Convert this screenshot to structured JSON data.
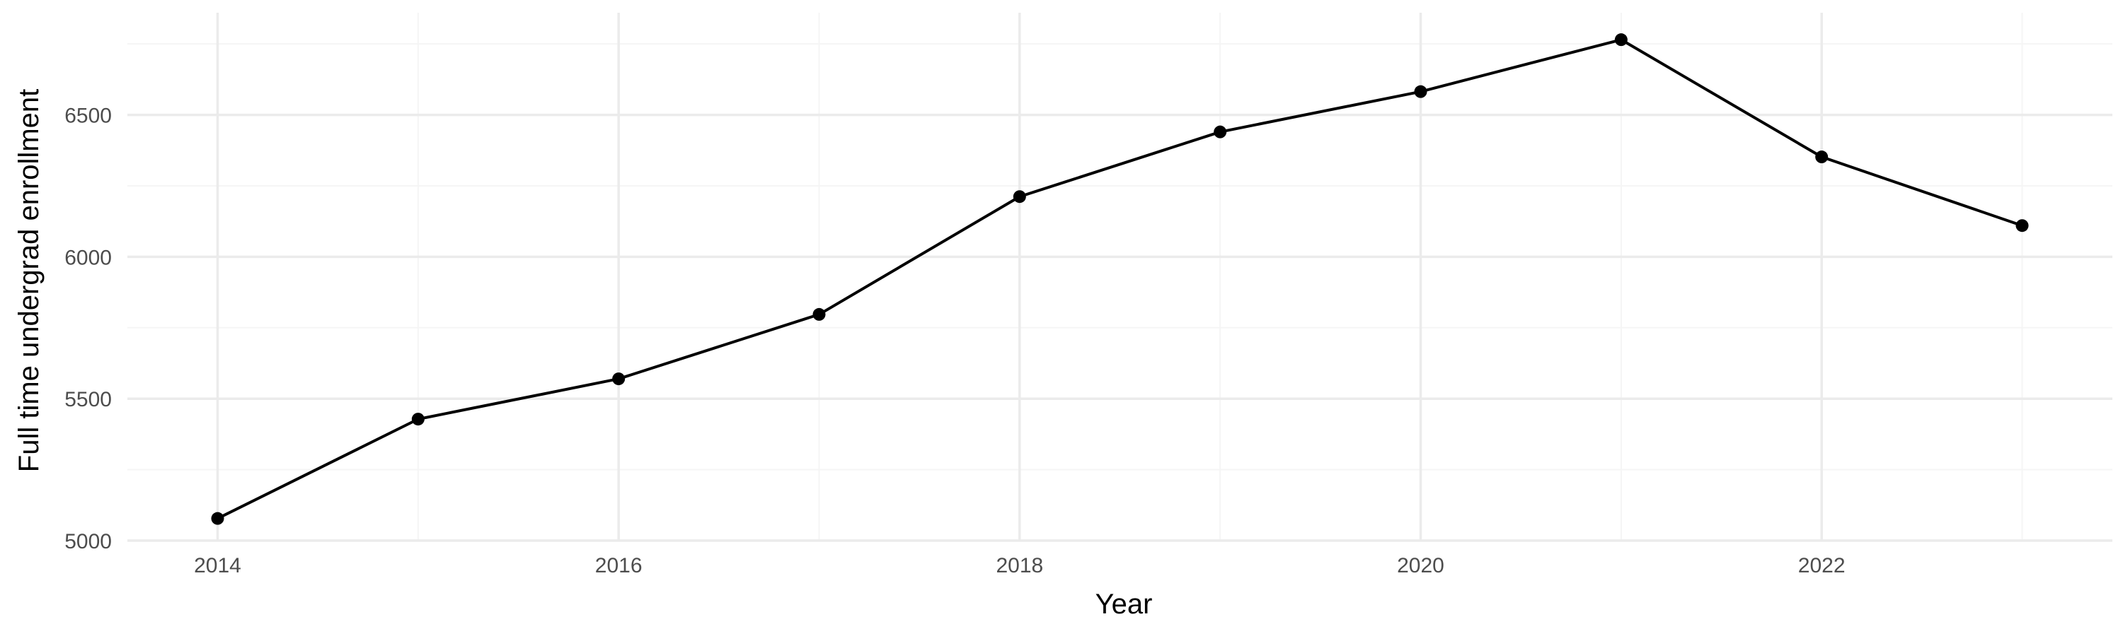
{
  "chart_data": {
    "type": "line",
    "title": "",
    "xlabel": "Year",
    "ylabel": "Full time undergrad enrollment",
    "x": [
      2014,
      2015,
      2016,
      2017,
      2018,
      2019,
      2020,
      2021,
      2022,
      2023
    ],
    "series": [
      {
        "values": [
          5078,
          5428,
          5570,
          5797,
          6212,
          6440,
          6582,
          6765,
          6352,
          6110
        ],
        "color": "#000000"
      }
    ],
    "xlim": [
      2013.55,
      2023.45
    ],
    "ylim": [
      5000,
      6860
    ],
    "x_ticks": [
      2014,
      2016,
      2018,
      2020,
      2022
    ],
    "x_tick_labels": [
      "2014",
      "2016",
      "2018",
      "2020",
      "2022"
    ],
    "y_ticks": [
      5000,
      5500,
      6000,
      6500
    ],
    "y_tick_labels": [
      "5000",
      "5500",
      "6000",
      "6500"
    ],
    "grid": true,
    "legend": "none",
    "colors": {
      "grid_major": "#ebebeb",
      "grid_minor": "#f5f5f5",
      "line": "#000000",
      "point": "#000000",
      "tick_text": "#4d4d4d"
    }
  }
}
